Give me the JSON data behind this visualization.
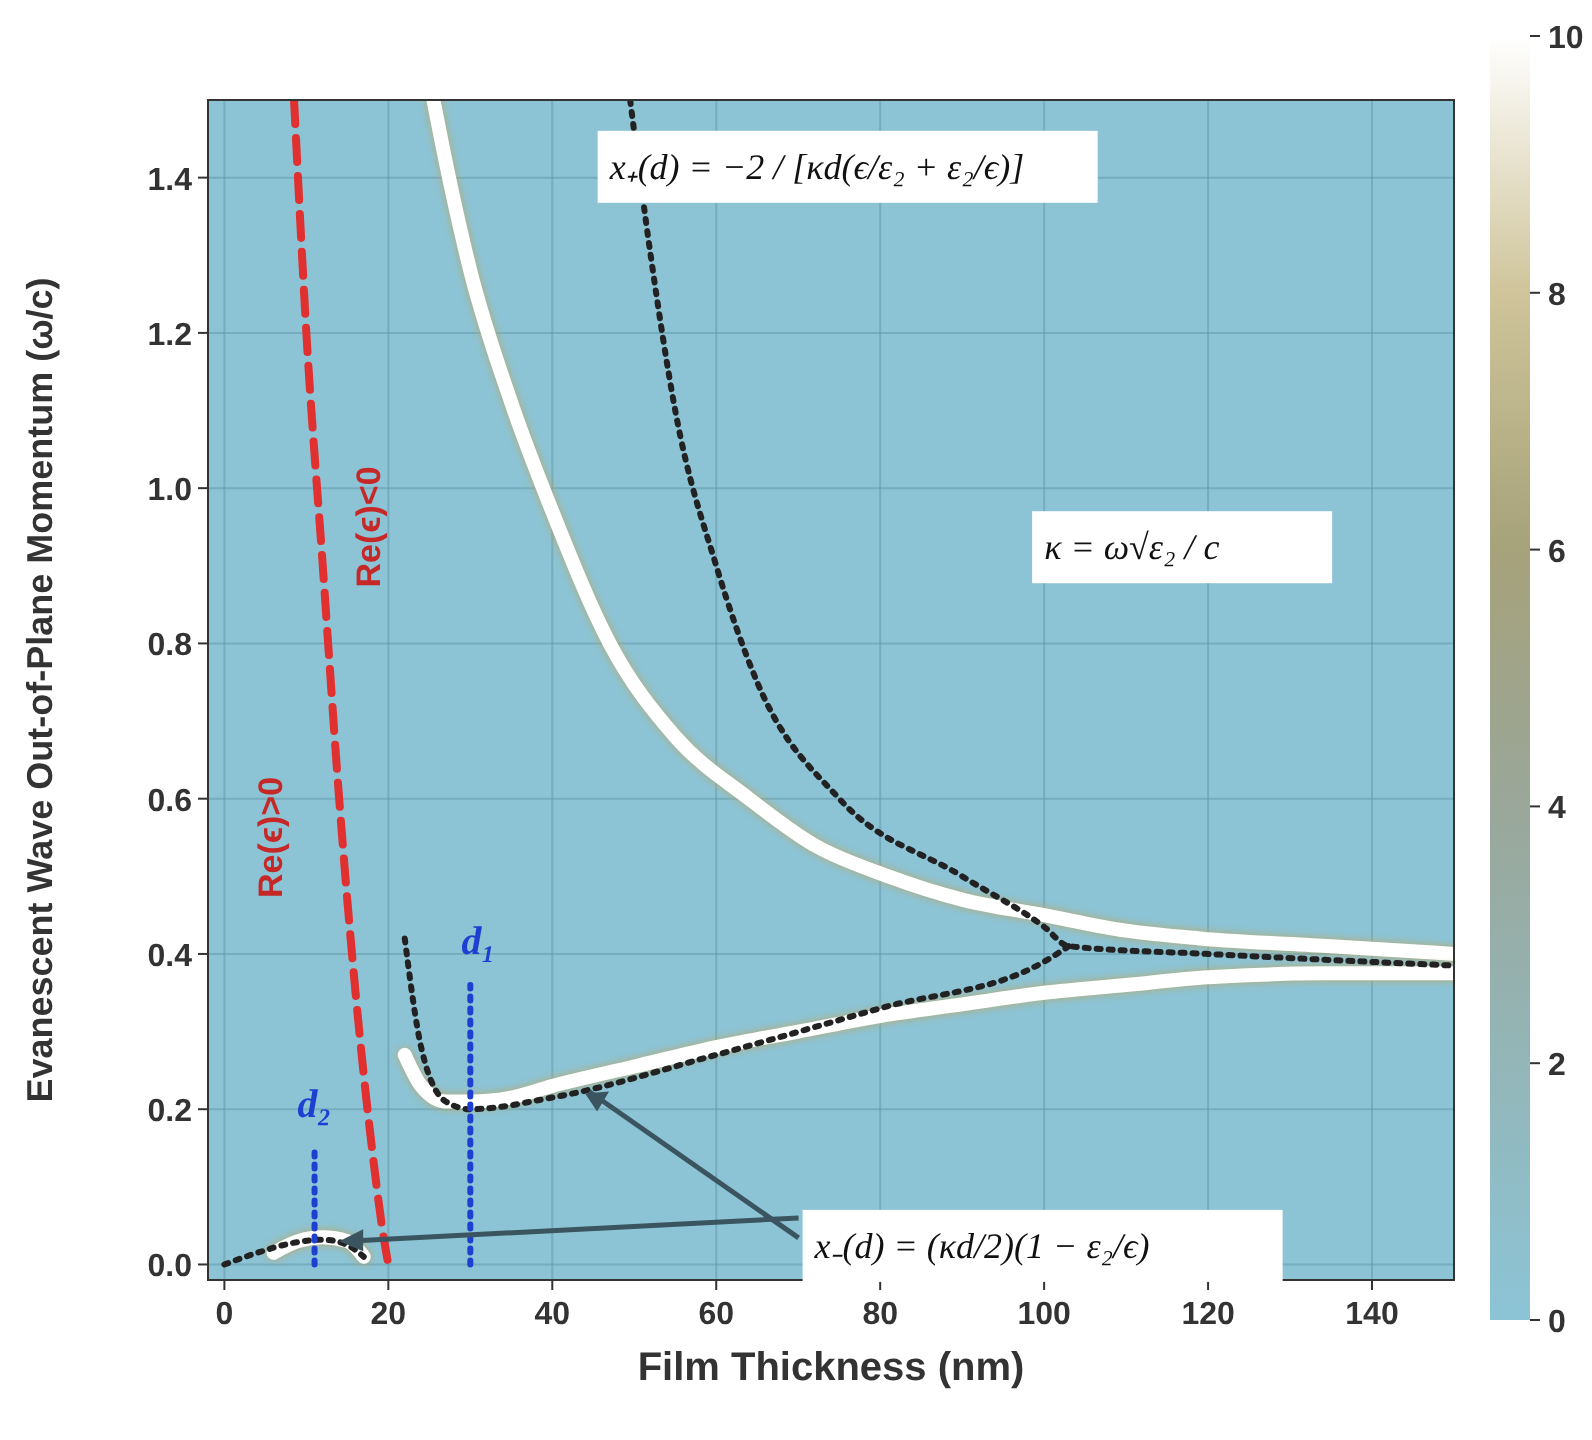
{
  "chart_data": {
    "type": "line",
    "xlabel": "Film Thickness (nm)",
    "ylabel": "Evanescent Wave Out-of-Plane Momentum (ω/c)",
    "xlim": [
      -2,
      150
    ],
    "ylim": [
      -0.02,
      1.5
    ],
    "xticks": [
      0,
      20,
      40,
      60,
      80,
      100,
      120,
      140
    ],
    "yticks": [
      {
        "value": 0,
        "label": "0.0"
      },
      {
        "value": 0.2,
        "label": "0.2"
      },
      {
        "value": 0.4,
        "label": "0.4"
      },
      {
        "value": 0.6,
        "label": "0.6"
      },
      {
        "value": 0.8,
        "label": "0.8"
      },
      {
        "value": 1.0,
        "label": "1.0"
      },
      {
        "value": 1.2,
        "label": "1.2"
      },
      {
        "value": 1.4,
        "label": "1.4"
      }
    ],
    "grid": true,
    "clim": [
      0,
      10
    ],
    "cticks": [
      0,
      2,
      4,
      6,
      8,
      10
    ],
    "series": [
      {
        "color": "#ffffff",
        "x": [
          25.5,
          27.4,
          30,
          35,
          40,
          47,
          55,
          64,
          72,
          81,
          90,
          100,
          110,
          119,
          135,
          150
        ],
        "values": [
          1.5,
          1.4,
          1.28,
          1.11,
          0.97,
          0.8,
          0.68,
          0.6,
          0.54,
          0.5,
          0.47,
          0.45,
          0.43,
          0.42,
          0.41,
          0.4
        ]
      },
      {
        "color": "#ffffff",
        "x": [
          22,
          24,
          27,
          30,
          35,
          40,
          50,
          60,
          70,
          80,
          90,
          100,
          110,
          120,
          135,
          150
        ],
        "values": [
          0.27,
          0.23,
          0.21,
          0.21,
          0.215,
          0.23,
          0.255,
          0.28,
          0.3,
          0.32,
          0.335,
          0.35,
          0.36,
          0.37,
          0.375,
          0.375
        ]
      },
      {
        "color": "#ffffff",
        "x": [
          6,
          9,
          12,
          15,
          17
        ],
        "values": [
          0.015,
          0.03,
          0.035,
          0.03,
          0.01
        ]
      },
      {
        "color": "#222222",
        "line_style": "dotted",
        "x": [
          49.5,
          52,
          55,
          60,
          65,
          75,
          90,
          100,
          103,
          120,
          150
        ],
        "values": [
          1.5,
          1.3,
          1.1,
          0.9,
          0.75,
          0.6,
          0.5,
          0.435,
          0.41,
          0.4,
          0.385
        ]
      },
      {
        "color": "#222222",
        "line_style": "dotted",
        "x": [
          22,
          24,
          27,
          30,
          40,
          60,
          80,
          100,
          103
        ],
        "values": [
          0.42,
          0.28,
          0.21,
          0.2,
          0.215,
          0.27,
          0.33,
          0.39,
          0.41
        ]
      },
      {
        "color": "#222222",
        "line_style": "dotted",
        "x": [
          0,
          4,
          8,
          12,
          15,
          17
        ],
        "values": [
          0,
          0.015,
          0.027,
          0.032,
          0.025,
          0.01
        ]
      },
      {
        "color": "#e03030",
        "line_style": "dashed",
        "x": [
          8.5,
          10,
          12,
          14,
          16,
          18,
          19.5,
          20
        ],
        "values": [
          1.5,
          1.2,
          0.9,
          0.6,
          0.35,
          0.15,
          0.03,
          0
        ]
      },
      {
        "color": "#1f3fd0",
        "line_style": "dotted",
        "x": [
          30,
          30
        ],
        "values": [
          0,
          0.36
        ]
      },
      {
        "color": "#1f3fd0",
        "line_style": "dotted",
        "x": [
          11,
          11
        ],
        "values": [
          0,
          0.15
        ]
      }
    ],
    "annotations": [
      "Re(ϵ)>0",
      "Re(ϵ)<0",
      "d₁",
      "d₂",
      "x₊(d) = −2 / [κd(ϵ/ε₂ + ε₂/ϵ)]",
      "κ = ω√ε₂ / c",
      {
        "text": "x₋(d) = (κd/2)(1 − ε₂/ϵ)",
        "x": 14,
        "y": 0.03
      }
    ]
  }
}
